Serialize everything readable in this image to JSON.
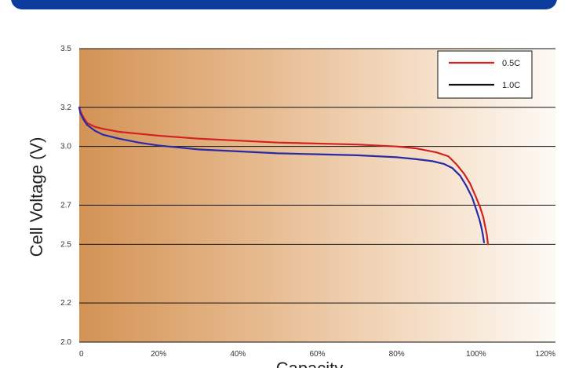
{
  "chart_data": {
    "type": "line",
    "title": "",
    "ylabel": "Cell Voltage (V)",
    "xlabel": "Capacity",
    "xlim": [
      0,
      120
    ],
    "ylim": [
      2.0,
      3.5
    ],
    "x_ticks": [
      "0",
      "20%",
      "40%",
      "60%",
      "80%",
      "100%",
      "120%"
    ],
    "x_tick_values": [
      0,
      20,
      40,
      60,
      80,
      100,
      120
    ],
    "y_ticks": [
      "3.5",
      "3.2",
      "3.0",
      "2.7",
      "2.5",
      "2.2",
      "2.0"
    ],
    "y_tick_values": [
      3.5,
      3.2,
      3.0,
      2.7,
      2.5,
      2.2,
      2.0
    ],
    "grid": "horizontal",
    "legend_position": "top-right",
    "series": [
      {
        "name": "0.5C",
        "color": "#d42020",
        "x": [
          0,
          0.3,
          1,
          2,
          4,
          6,
          10,
          15,
          20,
          30,
          40,
          50,
          60,
          70,
          80,
          85,
          90,
          93,
          95,
          97,
          98.5,
          100,
          101,
          101.8,
          102.3,
          102.7,
          103
        ],
        "y": [
          3.2,
          3.18,
          3.15,
          3.12,
          3.1,
          3.09,
          3.075,
          3.065,
          3.055,
          3.04,
          3.03,
          3.02,
          3.015,
          3.01,
          3.0,
          2.99,
          2.97,
          2.95,
          2.91,
          2.86,
          2.81,
          2.74,
          2.69,
          2.64,
          2.59,
          2.55,
          2.5
        ]
      },
      {
        "name": "1.0C",
        "color": "#2a2aa8",
        "x": [
          0,
          0.3,
          1,
          2,
          4,
          6,
          10,
          15,
          20,
          25,
          30,
          40,
          50,
          60,
          70,
          80,
          85,
          89,
          92,
          94,
          96,
          97.5,
          99,
          100,
          100.8,
          101.3,
          101.7,
          102
        ],
        "y": [
          3.2,
          3.17,
          3.14,
          3.11,
          3.08,
          3.06,
          3.04,
          3.02,
          3.005,
          2.995,
          2.985,
          2.975,
          2.965,
          2.96,
          2.955,
          2.945,
          2.935,
          2.925,
          2.91,
          2.89,
          2.85,
          2.8,
          2.74,
          2.68,
          2.63,
          2.59,
          2.55,
          2.51
        ]
      }
    ],
    "background_gradient": [
      "#d39355",
      "#fdfaf5"
    ]
  }
}
